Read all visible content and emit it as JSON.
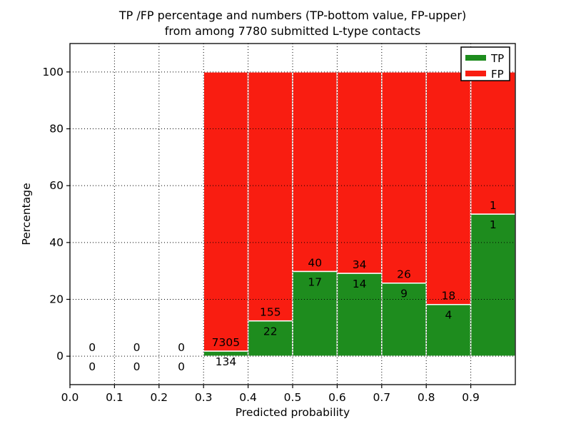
{
  "figure": {
    "title_line1": "TP /FP percentage and numbers (TP-bottom value, FP-upper)",
    "title_line2": "from among 7780 submitted L-type contacts",
    "xlabel": "Predicted probability",
    "ylabel": "Percentage"
  },
  "legend": {
    "position": "upper-right",
    "items": [
      {
        "label": "TP",
        "color": "#1e8c1e"
      },
      {
        "label": "FP",
        "color": "#f91d11"
      }
    ]
  },
  "chart_data": {
    "type": "bar",
    "stacked": true,
    "normalized_to_percent": 100,
    "title": "TP /FP percentage and numbers (TP-bottom value, FP-upper) from among 7780 submitted L-type contacts",
    "xlabel": "Predicted probability",
    "ylabel": "Percentage",
    "xlim": [
      0.0,
      1.0
    ],
    "ylim": [
      -10,
      110
    ],
    "grid": true,
    "x_ticks": [
      "0.0",
      "0.1",
      "0.2",
      "0.3",
      "0.4",
      "0.5",
      "0.6",
      "0.7",
      "0.8",
      "0.9"
    ],
    "y_ticks": [
      0,
      20,
      40,
      60,
      80,
      100
    ],
    "series": [
      {
        "name": "TP",
        "color": "#1e8c1e"
      },
      {
        "name": "FP",
        "color": "#f91d11"
      }
    ],
    "total_contacts": 7780,
    "bins": [
      {
        "x0": 0.0,
        "x1": 0.1,
        "tp": 0,
        "fp": 0
      },
      {
        "x0": 0.1,
        "x1": 0.2,
        "tp": 0,
        "fp": 0
      },
      {
        "x0": 0.2,
        "x1": 0.3,
        "tp": 0,
        "fp": 0
      },
      {
        "x0": 0.3,
        "x1": 0.4,
        "tp": 134,
        "fp": 7305
      },
      {
        "x0": 0.4,
        "x1": 0.5,
        "tp": 22,
        "fp": 155
      },
      {
        "x0": 0.5,
        "x1": 0.6,
        "tp": 17,
        "fp": 40
      },
      {
        "x0": 0.6,
        "x1": 0.7,
        "tp": 14,
        "fp": 34
      },
      {
        "x0": 0.7,
        "x1": 0.8,
        "tp": 9,
        "fp": 26
      },
      {
        "x0": 0.8,
        "x1": 0.9,
        "tp": 4,
        "fp": 18
      },
      {
        "x0": 0.9,
        "x1": 1.0,
        "tp": 1,
        "fp": 1
      }
    ]
  },
  "colors": {
    "background": "#ffffff",
    "axis": "#000000",
    "bar_edge": "#ffffff",
    "text": "#000000"
  }
}
